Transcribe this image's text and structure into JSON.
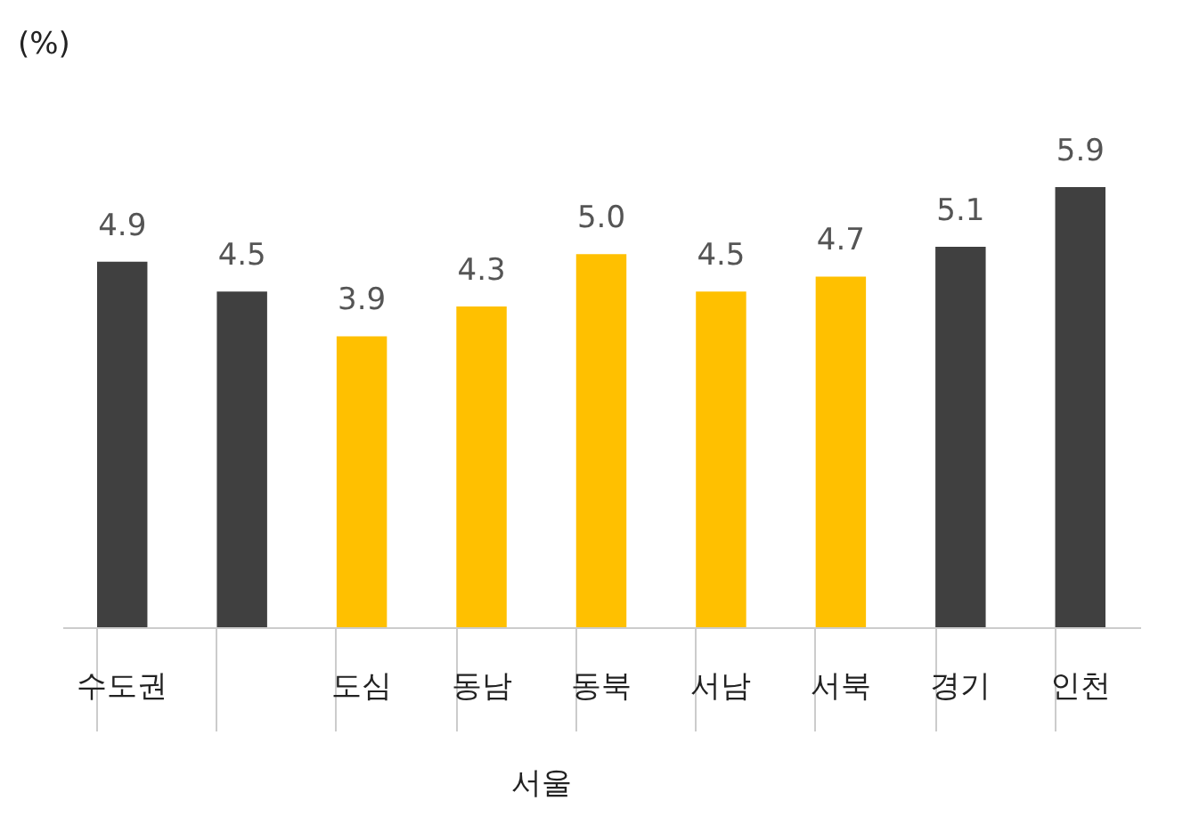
{
  "chart_data": {
    "type": "bar",
    "categories": [
      "수도권",
      null,
      "도심",
      "동남",
      "동북",
      "서남",
      "서북",
      "경기",
      "인천"
    ],
    "values": [
      4.9,
      4.5,
      3.9,
      4.3,
      5.0,
      4.5,
      4.7,
      5.1,
      5.9
    ],
    "value_labels": [
      "4.9",
      "4.5",
      "3.9",
      "4.3",
      "5.0",
      "4.5",
      "4.7",
      "5.1",
      "5.9"
    ],
    "colors": [
      "#404040",
      "#404040",
      "#ffc000",
      "#ffc000",
      "#ffc000",
      "#ffc000",
      "#ffc000",
      "#404040",
      "#404040"
    ],
    "annotations": [
      "(%)",
      "서울"
    ]
  }
}
